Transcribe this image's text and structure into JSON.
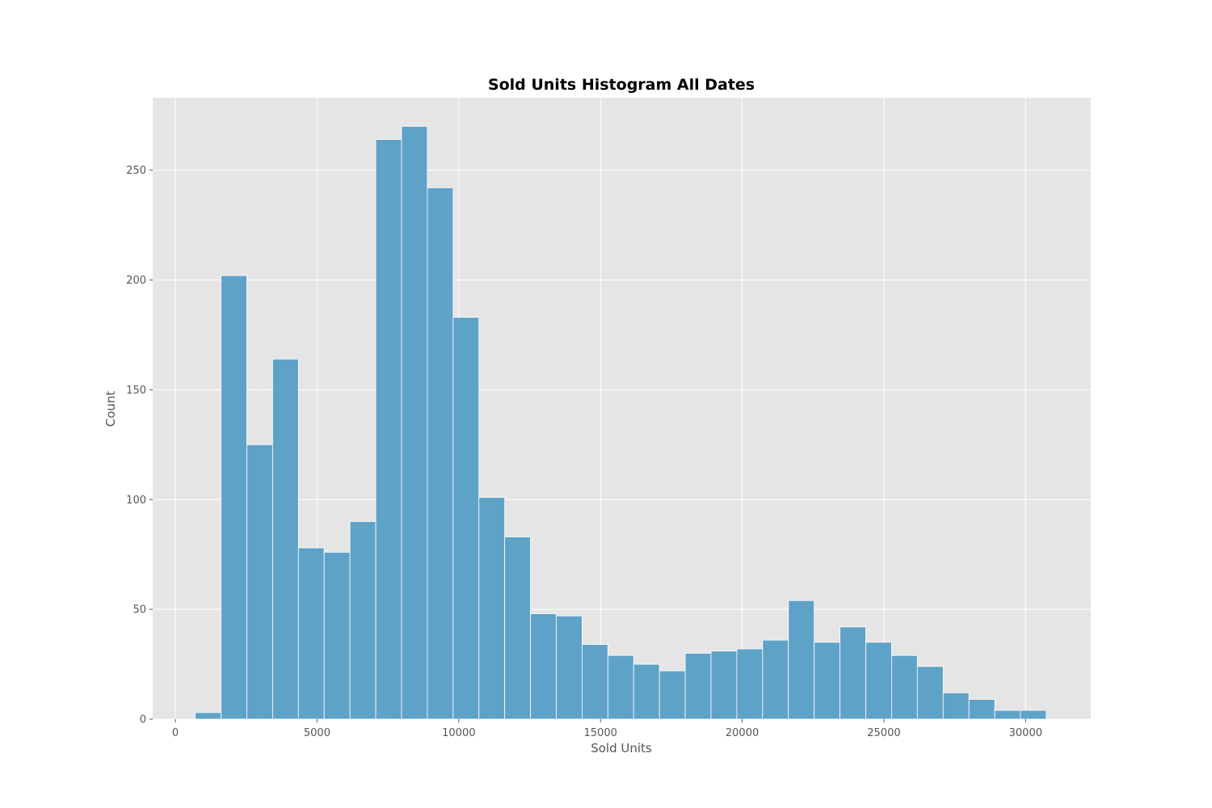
{
  "chart_data": {
    "type": "bar",
    "title": "Sold Units Histogram All Dates",
    "xlabel": "Sold Units",
    "ylabel": "Count",
    "xlim": [
      -800,
      32300
    ],
    "ylim": [
      0,
      283
    ],
    "xticks": [
      0,
      5000,
      10000,
      15000,
      20000,
      25000,
      30000
    ],
    "yticks": [
      0,
      50,
      100,
      150,
      200,
      250
    ],
    "grid": true,
    "bin_edges": [
      700,
      1610,
      2520,
      3430,
      4340,
      5250,
      6160,
      7070,
      7980,
      8890,
      9800,
      10710,
      11620,
      12530,
      13440,
      14350,
      15260,
      16170,
      17080,
      17990,
      18900,
      19810,
      20720,
      21630,
      22540,
      23450,
      24360,
      25270,
      26180,
      27090,
      28000,
      28910,
      29820,
      30730
    ],
    "counts": [
      3,
      202,
      125,
      164,
      78,
      76,
      90,
      264,
      270,
      242,
      183,
      101,
      83,
      48,
      47,
      34,
      29,
      25,
      22,
      30,
      31,
      32,
      36,
      54,
      35,
      42,
      35,
      29,
      24,
      12,
      9,
      4,
      4
    ],
    "colors": {
      "bar": "#5fa2c8",
      "plot_bg": "#e5e5e5",
      "grid": "#ffffff"
    }
  }
}
